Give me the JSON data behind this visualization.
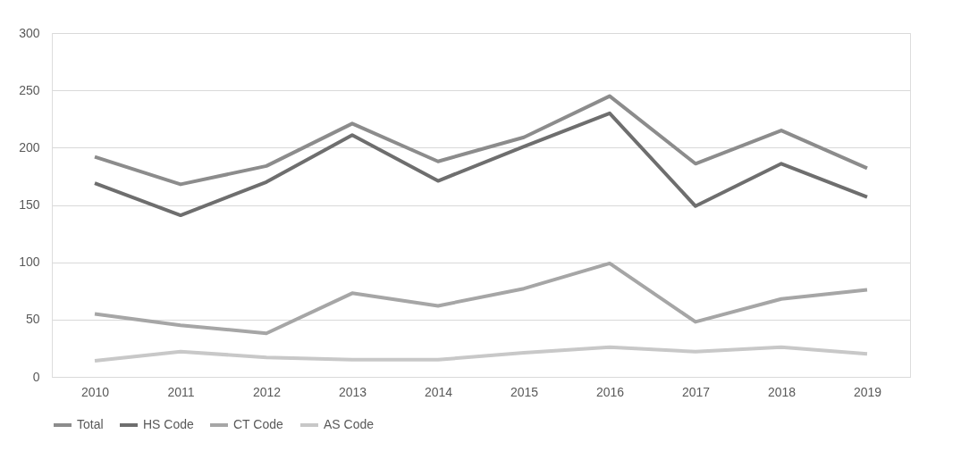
{
  "chart_data": {
    "type": "line",
    "categories": [
      "2010",
      "2011",
      "2012",
      "2013",
      "2014",
      "2015",
      "2016",
      "2017",
      "2018",
      "2019"
    ],
    "series": [
      {
        "name": "Total",
        "color": "#8c8c8c",
        "values": [
          192,
          168,
          184,
          221,
          188,
          209,
          245,
          186,
          215,
          182
        ]
      },
      {
        "name": "HS Code",
        "color": "#6e6e6e",
        "values": [
          169,
          141,
          170,
          211,
          171,
          201,
          230,
          149,
          186,
          157
        ]
      },
      {
        "name": "CT Code",
        "color": "#a6a6a6",
        "values": [
          55,
          45,
          38,
          73,
          62,
          77,
          99,
          48,
          68,
          76
        ]
      },
      {
        "name": "AS Code",
        "color": "#c8c8c8",
        "values": [
          14,
          22,
          17,
          15,
          15,
          21,
          26,
          22,
          26,
          20
        ]
      }
    ],
    "ylim": [
      0,
      300
    ],
    "yticks": [
      0,
      50,
      100,
      150,
      200,
      250,
      300
    ],
    "grid": "y",
    "legend": "bottom",
    "marker": "none",
    "line_style": "solid"
  }
}
